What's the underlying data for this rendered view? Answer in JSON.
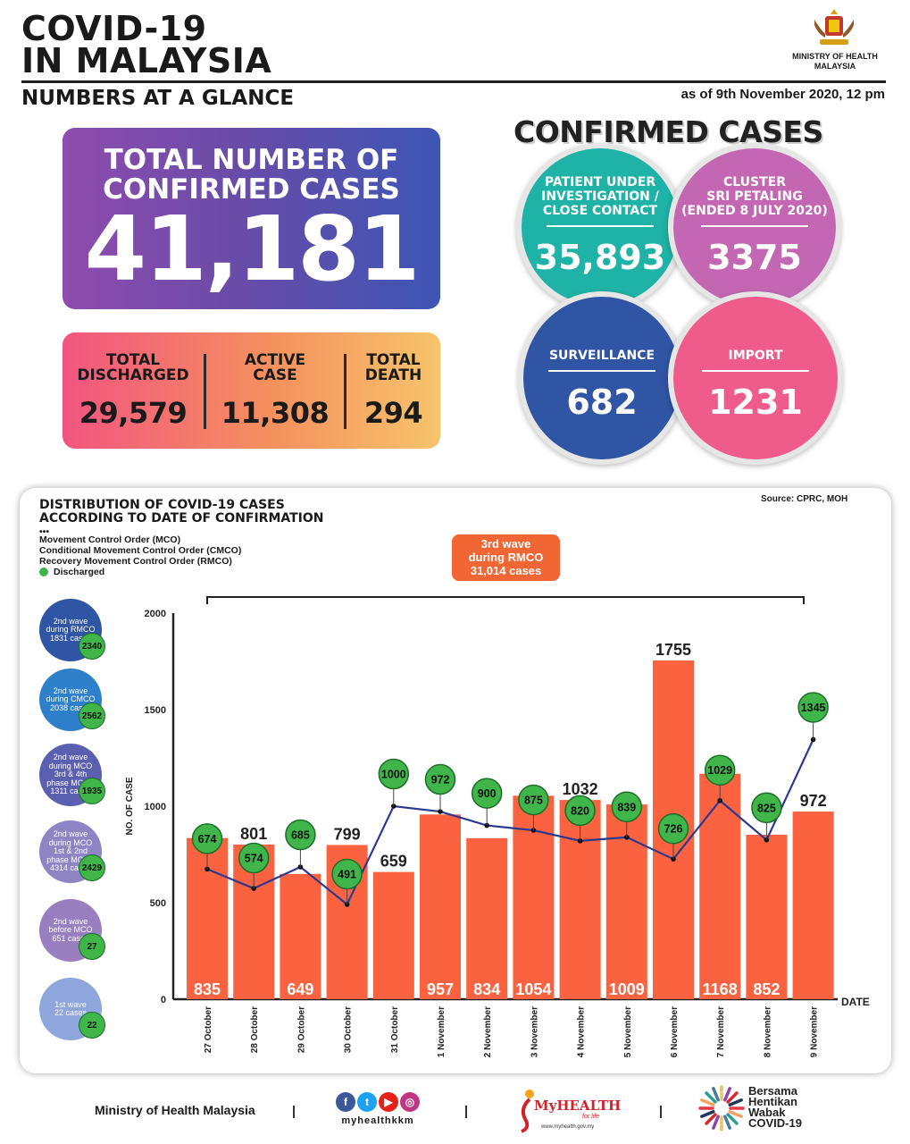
{
  "header": {
    "title_line1": "COVID-19",
    "title_line2": "IN MALAYSIA",
    "subtitle": "NUMBERS AT A GLANCE",
    "ministry_line1": "MINISTRY OF HEALTH",
    "ministry_line2": "MALAYSIA",
    "as_of": "as of 9th November 2020, 12 pm"
  },
  "total": {
    "label_line1": "TOTAL NUMBER OF",
    "label_line2": "CONFIRMED CASES",
    "value": "41,181"
  },
  "stats": {
    "discharged_label1": "TOTAL",
    "discharged_label2": "DISCHARGED",
    "discharged_value": "29,579",
    "active_label1": "ACTIVE",
    "active_label2": "CASE",
    "active_value": "11,308",
    "death_label1": "TOTAL",
    "death_label2": "DEATH",
    "death_value": "294"
  },
  "confirmed": {
    "title": "CONFIRMED CASES",
    "pui_label1": "PATIENT UNDER",
    "pui_label2": "INVESTIGATION /",
    "pui_label3": "CLOSE CONTACT",
    "pui_value": "35,893",
    "cluster_label1": "CLUSTER",
    "cluster_label2": "SRI PETALING",
    "cluster_label3": "(ENDED 8 JULY 2020)",
    "cluster_value": "3375",
    "surveillance_label": "SURVEILLANCE",
    "surveillance_value": "682",
    "import_label": "IMPORT",
    "import_value": "1231",
    "colors": {
      "pui": "#1fb2a6",
      "cluster": "#c467b2",
      "surveillance": "#2f55a4",
      "import": "#ef5b8a"
    }
  },
  "chart_section": {
    "title_line1": "DISTRIBUTION OF COVID-19 CASES",
    "title_line2": "ACCORDING TO DATE OF CONFIRMATION",
    "source": "Source: CPRC, MOH",
    "legend_dots": "•••",
    "legend_mco": "Movement Control Order (MCO)",
    "legend_cmco": "Conditional Movement Control Order (CMCO)",
    "legend_rmco": "Recovery Movement Control Order (RMCO)",
    "legend_discharged": "Discharged",
    "wave3_line1": "3rd wave",
    "wave3_line2": "during RMCO",
    "wave3_line3": "31,014 cases",
    "waves": [
      {
        "l1": "2nd wave",
        "l2": "during RMCO",
        "l3": "1831 cases",
        "l4": "",
        "l5": "",
        "discharged": "2340",
        "color": "#2f55a4"
      },
      {
        "l1": "2nd wave",
        "l2": "during CMCO",
        "l3": "2038 cases",
        "l4": "",
        "l5": "",
        "discharged": "2562",
        "color": "#2d80c9"
      },
      {
        "l1": "2nd wave",
        "l2": "during MCO",
        "l3": "3rd & 4th",
        "l4": "phase MCO -",
        "l5": "1311 cases",
        "discharged": "1935",
        "color": "#5a5fb0"
      },
      {
        "l1": "2nd wave",
        "l2": "during MCO",
        "l3": "1st & 2nd",
        "l4": "phase MCO -",
        "l5": "4314 cases",
        "discharged": "2429",
        "color": "#8e85c4"
      },
      {
        "l1": "2nd wave",
        "l2": "before MCO",
        "l3": "651 cases",
        "l4": "",
        "l5": "",
        "discharged": "27",
        "color": "#9a7fc0"
      },
      {
        "l1": "1st wave",
        "l2": "22 cases",
        "l3": "",
        "l4": "",
        "l5": "",
        "discharged": "22",
        "color": "#8fa6dc"
      }
    ]
  },
  "chart_data": {
    "type": "bar",
    "categories": [
      "27 October",
      "28 October",
      "29 October",
      "30 October",
      "31 October",
      "1 November",
      "2 November",
      "3 November",
      "4 November",
      "5 November",
      "6 November",
      "7 November",
      "8 November",
      "9 November"
    ],
    "series": [
      {
        "values": [
          835,
          801,
          649,
          799,
          659,
          957,
          834,
          1054,
          1032,
          1009,
          1755,
          1168,
          852,
          972
        ],
        "color": "#fb6340"
      },
      {
        "name": "Discharged",
        "type": "line",
        "values": [
          674,
          574,
          685,
          491,
          1000,
          972,
          900,
          875,
          820,
          839,
          726,
          1029,
          825,
          1345
        ],
        "color": "#2b3a8f",
        "marker_color": "#3fb54a"
      }
    ],
    "bar_label_placement": [
      "inside",
      "above",
      "inside",
      "above",
      "above",
      "inside",
      "inside",
      "inside",
      "above",
      "inside",
      "above",
      "inside",
      "inside",
      "above"
    ],
    "ylabel": "NO. OF CASE",
    "xlabel": "DATE",
    "yticks": [
      0,
      500,
      1000,
      1500,
      2000
    ],
    "ylim": [
      0,
      2000
    ]
  },
  "footer": {
    "ministry": "Ministry of Health Malaysia",
    "social_handle": "myhealthkkm",
    "myhealth": "MyHEALTH",
    "myhealth_tag": "for life",
    "myhealth_url": "www.myhealth.gov.my",
    "campaign1": "Bersama",
    "campaign2": "Hentikan",
    "campaign3": "Wabak",
    "campaign4": "COVID-19"
  }
}
